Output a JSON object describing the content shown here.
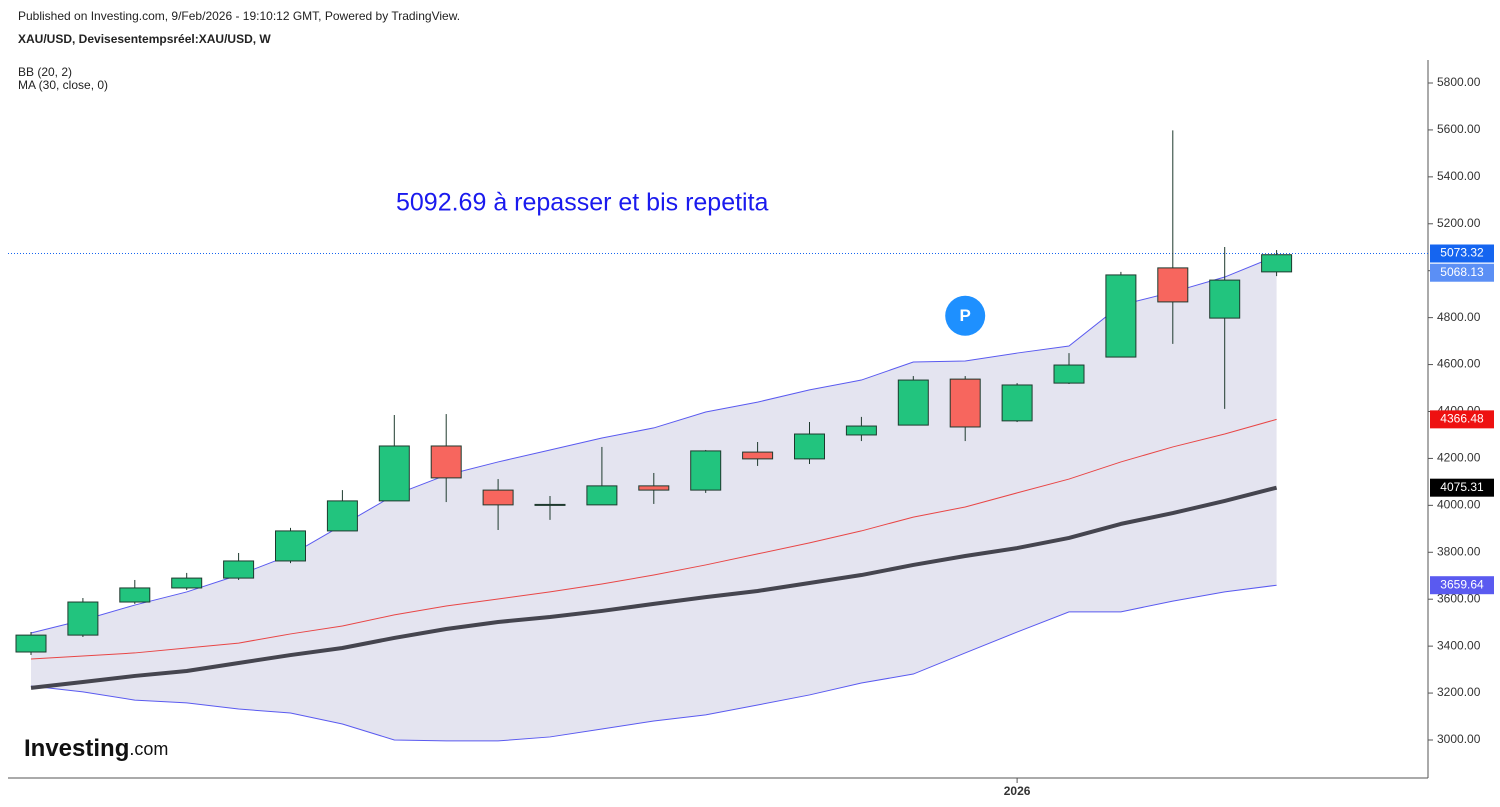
{
  "header": {
    "published": "Published on Investing.com, 9/Feb/2026 - 19:10:12 GMT, Powered by TradingView."
  },
  "chart_data": {
    "type": "candlestick",
    "title": "XAU/USD, Devisesentempsréel:XAU/USD, W",
    "annotation": "5092.69 à repasser et bis repetita",
    "marker": {
      "label": "P",
      "index": 18,
      "value": 4808,
      "color": "#1e90ff"
    },
    "logo": {
      "brand": "Investing",
      "suffix": ".com"
    },
    "categories": [
      null,
      null,
      null,
      null,
      null,
      null,
      null,
      null,
      null,
      null,
      null,
      null,
      null,
      null,
      null,
      null,
      null,
      null,
      null,
      "2026",
      null,
      null,
      null,
      null,
      null
    ],
    "open": [
      3375,
      3447,
      3588,
      3648,
      3690,
      3763,
      3891,
      4019,
      4253,
      4065,
      4004,
      4002,
      4083,
      4065,
      4227,
      4198,
      4300,
      4342,
      4538,
      4360,
      4521,
      4632,
      5012,
      4798,
      4995
    ],
    "high": [
      3460,
      3605,
      3682,
      3712,
      3797,
      3904,
      4065,
      4385,
      4389,
      4112,
      4040,
      4249,
      4138,
      4236,
      4270,
      4355,
      4377,
      4551,
      4551,
      4521,
      4649,
      4995,
      5598,
      5101,
      5088
    ],
    "low": [
      3362,
      3439,
      3580,
      3639,
      3682,
      3754,
      3891,
      4019,
      4014,
      3895,
      3938,
      4002,
      4006,
      4053,
      4168,
      4176,
      4274,
      4342,
      4274,
      4355,
      4517,
      4632,
      4688,
      4411,
      4977
    ],
    "close": [
      3447,
      3588,
      3648,
      3690,
      3763,
      3891,
      4019,
      4253,
      4117,
      4002,
      4002,
      4083,
      4065,
      4232,
      4198,
      4304,
      4338,
      4534,
      4334,
      4513,
      4598,
      4982,
      4867,
      4960,
      5068.13
    ],
    "up_color": "#22c47e",
    "down_color": "#f7665e",
    "price_line": 5073.32,
    "price_line_color": "#1565f0",
    "close_tag_color": "#5b8ff5",
    "indicators": [
      {
        "name": "BB (20, 2)",
        "color": "#5a5af0",
        "basis_color": "#e84646",
        "fill": "#e4e4f0",
        "upper": [
          3456,
          3511,
          3575,
          3631,
          3703,
          3788,
          3916,
          4044,
          4129,
          4185,
          4236,
          4287,
          4330,
          4398,
          4440,
          4492,
          4534,
          4611,
          4615,
          4649,
          4679,
          4854,
          4909,
          4973,
          5063
        ],
        "basis": [
          3345,
          3358,
          3371,
          3392,
          3413,
          3452,
          3486,
          3533,
          3571,
          3601,
          3631,
          3665,
          3703,
          3746,
          3793,
          3840,
          3891,
          3950,
          3993,
          4053,
          4112,
          4185,
          4249,
          4304,
          4366.48
        ],
        "lower": [
          3230,
          3205,
          3170,
          3158,
          3132,
          3115,
          3068,
          3000,
          2996,
          2996,
          3013,
          3047,
          3081,
          3107,
          3149,
          3192,
          3243,
          3281,
          3371,
          3460,
          3546,
          3546,
          3592,
          3631,
          3659.64
        ]
      },
      {
        "name": "MA (30, close, 0)",
        "color": "#45454f",
        "values": [
          3222,
          3247,
          3273,
          3294,
          3328,
          3362,
          3392,
          3435,
          3473,
          3503,
          3524,
          3550,
          3580,
          3609,
          3635,
          3669,
          3703,
          3746,
          3784,
          3818,
          3861,
          3921,
          3967,
          4019,
          4075.31
        ]
      }
    ],
    "ylim": [
      2838,
      5898
    ],
    "yticks": [
      {
        "value": 3000,
        "label": "3000.00"
      },
      {
        "value": 3200,
        "label": "3200.00"
      },
      {
        "value": 3400,
        "label": "3400.00"
      },
      {
        "value": 3600,
        "label": "3600.00"
      },
      {
        "value": 3800,
        "label": "3800.00"
      },
      {
        "value": 4000,
        "label": "4000.00"
      },
      {
        "value": 4200,
        "label": "4200.00"
      },
      {
        "value": 4400,
        "label": "4400.00"
      },
      {
        "value": 4600,
        "label": "4600.00"
      },
      {
        "value": 4800,
        "label": "4800.00"
      },
      {
        "value": 5000,
        "label": "5000.00"
      },
      {
        "value": 5200,
        "label": "5200.00"
      },
      {
        "value": 5400,
        "label": "5400.00"
      },
      {
        "value": 5600,
        "label": "5600.00"
      },
      {
        "value": 5800,
        "label": "5800.00"
      }
    ]
  }
}
